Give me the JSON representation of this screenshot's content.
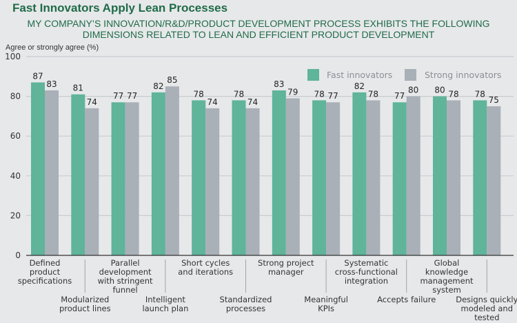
{
  "title": "Fast Innovators Apply Lean Processes",
  "subtitle_lines": [
    "MY COMPANY’S INNOVATION/R&D/PRODUCT DEVELOPMENT PROCESS EXHIBITS THE FOLLOWING",
    "DIMENSIONS RELATED TO LEAN AND EFFICIENT PRODUCT DEVELOPMENT"
  ],
  "colors": {
    "fast": "#5fb49a",
    "strong": "#a9b0b7",
    "title": "#1f6b48"
  },
  "chart_data": {
    "type": "bar",
    "title": "Fast Innovators Apply Lean Processes",
    "subtitle": "MY COMPANY’S INNOVATION/R&D/PRODUCT DEVELOPMENT PROCESS EXHIBITS THE FOLLOWING DIMENSIONS RELATED TO LEAN AND EFFICIENT PRODUCT DEVELOPMENT",
    "xlabel": "",
    "ylabel": "Agree or strongly agree (%)",
    "ylim": [
      0,
      100
    ],
    "yticks": [
      0,
      20,
      40,
      60,
      80,
      100
    ],
    "grid": true,
    "legend_position": "top-right",
    "categories": [
      [
        "Defined",
        "product",
        "specifications"
      ],
      [
        "Modularized",
        "product lines"
      ],
      [
        "Parallel",
        "development",
        "with stringent",
        "funnel"
      ],
      [
        "Intelligent",
        "launch plan"
      ],
      [
        "Short cycles",
        "and iterations"
      ],
      [
        "Standardized",
        "processes"
      ],
      [
        "Strong project",
        "manager"
      ],
      [
        "Meaningful",
        "KPIs"
      ],
      [
        "Systematic",
        "cross-functional",
        "integration"
      ],
      [
        "Accepts failure"
      ],
      [
        "Global",
        "knowledge",
        "management",
        "system"
      ],
      [
        "Designs quickly",
        "modeled and",
        "tested"
      ]
    ],
    "series": [
      {
        "name": "Fast innovators",
        "values": [
          87,
          81,
          77,
          82,
          78,
          78,
          83,
          78,
          82,
          77,
          80,
          78
        ]
      },
      {
        "name": "Strong innovators",
        "values": [
          83,
          74,
          77,
          85,
          74,
          74,
          79,
          77,
          78,
          80,
          78,
          75
        ]
      }
    ]
  }
}
